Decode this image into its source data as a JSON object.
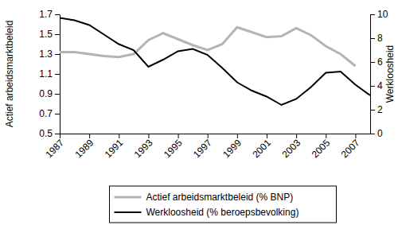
{
  "chart_data": {
    "type": "line",
    "x": [
      1987,
      1988,
      1989,
      1990,
      1991,
      1992,
      1993,
      1994,
      1995,
      1996,
      1997,
      1998,
      1999,
      2000,
      2001,
      2002,
      2003,
      2004,
      2005,
      2006,
      2007,
      2008
    ],
    "xlim": [
      1987,
      2008
    ],
    "xticks": [
      1987,
      1989,
      1991,
      1993,
      1995,
      1997,
      1999,
      2001,
      2003,
      2005,
      2007
    ],
    "y_label": "Actief arbeidsmarktbeleid",
    "y2_label": "Werkloosheid",
    "ylim": [
      0.5,
      1.7
    ],
    "yticks": [
      0.5,
      0.7,
      0.9,
      1.1,
      1.3,
      1.5,
      1.7
    ],
    "y2lim": [
      0,
      10
    ],
    "y2ticks": [
      0,
      2,
      4,
      6,
      8,
      10
    ],
    "grid": false,
    "legend": "bottom",
    "series": [
      {
        "name": "Actief arbeidsmarktbeleid (% BNP)",
        "color": "#b4b4b4",
        "axis": "y",
        "values": [
          1.32,
          1.32,
          1.3,
          1.28,
          1.27,
          1.3,
          1.44,
          1.51,
          1.45,
          1.39,
          1.34,
          1.4,
          1.57,
          1.52,
          1.47,
          1.48,
          1.56,
          1.49,
          1.38,
          1.3,
          1.18,
          null
        ]
      },
      {
        "name": "Werkloosheid (% beroepsbevolking)",
        "color": "#000000",
        "axis": "y2",
        "values": [
          9.7,
          9.5,
          9.1,
          8.3,
          7.5,
          7.0,
          5.6,
          6.2,
          6.9,
          7.1,
          6.6,
          5.5,
          4.3,
          3.6,
          3.1,
          2.4,
          2.9,
          3.9,
          5.1,
          5.2,
          4.1,
          3.2
        ]
      }
    ]
  }
}
